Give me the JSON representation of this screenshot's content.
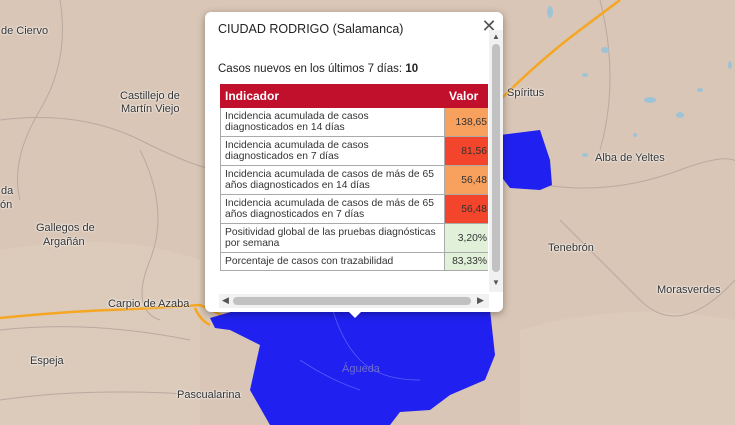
{
  "map": {
    "places": [
      {
        "name": "de Ciervo"
      },
      {
        "name": "Castillejo de"
      },
      {
        "name": "Martín Viejo"
      },
      {
        "name": "da"
      },
      {
        "name": "ón"
      },
      {
        "name": "Gallegos de"
      },
      {
        "name": "Argañán"
      },
      {
        "name": "Carpio de Azaba"
      },
      {
        "name": "Espeja"
      },
      {
        "name": "Pascualarina"
      },
      {
        "name": "Águeda"
      },
      {
        "name": "Spíritus"
      },
      {
        "name": "Alba de Yeltes"
      },
      {
        "name": "Tenebrón"
      },
      {
        "name": "Morasverdes"
      }
    ],
    "colors": {
      "background": "#d9c6b6",
      "region": "#1e1ef0",
      "road": "#f5a623"
    }
  },
  "popup": {
    "title": "CIUDAD RODRIGO (Salamanca)",
    "summary_label": "Casos nuevos en los últimos 7 días:",
    "summary_value": "10",
    "close_symbol": "✕",
    "table": {
      "headers": [
        "Indicador",
        "Valor"
      ],
      "rows": [
        {
          "indicator": "Incidencia acumulada de casos diagnosticados en 14 días",
          "value": "138,65",
          "color": "#f8a15e"
        },
        {
          "indicator": "Incidencia acumulada de casos diagnosticados en 7 días",
          "value": "81,56",
          "color": "#f2452c"
        },
        {
          "indicator": "Incidencia acumulada de casos de más de 65 años diagnosticados en 14 días",
          "value": "56,48",
          "color": "#f8a15e"
        },
        {
          "indicator": "Incidencia acumulada de casos de más de 65 años diagnosticados en 7 días",
          "value": "56,48",
          "color": "#f2452c"
        },
        {
          "indicator": "Positividad global de las pruebas diagnósticas por semana",
          "value": "3,20%",
          "color": "#e1f1d9"
        },
        {
          "indicator": "Porcentaje de casos con trazabilidad",
          "value": "83,33%",
          "color": "#e1f1d9"
        }
      ]
    }
  }
}
